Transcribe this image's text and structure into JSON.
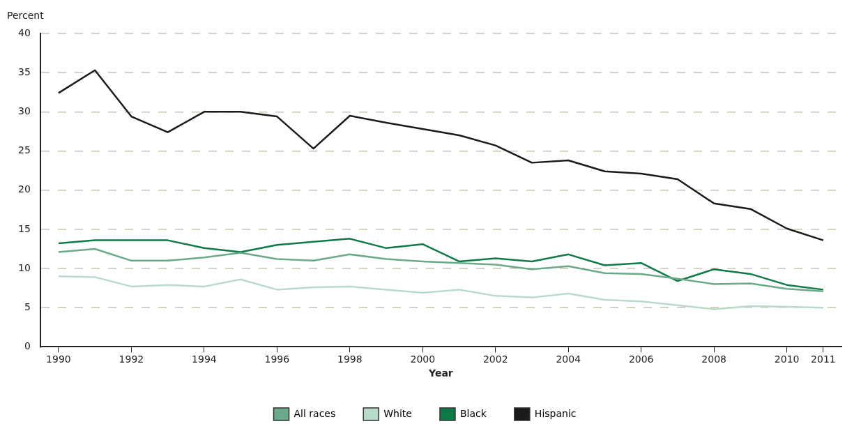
{
  "chart_data": {
    "type": "line",
    "xlabel": "Year",
    "ylabel": "Percent",
    "x": [
      1990,
      1991,
      1992,
      1993,
      1994,
      1995,
      1996,
      1997,
      1998,
      1999,
      2000,
      2001,
      2002,
      2003,
      2004,
      2005,
      2006,
      2007,
      2008,
      2009,
      2010,
      2011
    ],
    "xlim": [
      1989.5,
      2011.5
    ],
    "xticks": [
      1990,
      1992,
      1994,
      1996,
      1998,
      2000,
      2002,
      2004,
      2006,
      2008,
      2010,
      2011
    ],
    "ylim": [
      0,
      40
    ],
    "yticks": [
      0,
      5,
      10,
      15,
      20,
      25,
      30,
      35,
      40
    ],
    "grid": "y",
    "legend": "bottom",
    "marker": "none",
    "line_style": "solid",
    "series": [
      {
        "name": "All races",
        "color": "#6aaa8a",
        "values": [
          12.1,
          12.5,
          11.0,
          11.0,
          11.4,
          12.0,
          11.2,
          11.0,
          11.8,
          11.2,
          10.9,
          10.7,
          10.5,
          9.9,
          10.3,
          9.4,
          9.3,
          8.7,
          8.0,
          8.1,
          7.4,
          7.1
        ]
      },
      {
        "name": "White",
        "color": "#b8dac8",
        "values": [
          9.0,
          8.9,
          7.7,
          7.9,
          7.7,
          8.6,
          7.3,
          7.6,
          7.7,
          7.3,
          6.9,
          7.3,
          6.5,
          6.3,
          6.8,
          6.0,
          5.8,
          5.3,
          4.8,
          5.2,
          5.1,
          5.0
        ]
      },
      {
        "name": "Black",
        "color": "#0f7a48",
        "values": [
          13.2,
          13.6,
          13.6,
          13.6,
          12.6,
          12.1,
          13.0,
          13.4,
          13.8,
          12.6,
          13.1,
          10.9,
          11.3,
          10.9,
          11.8,
          10.4,
          10.7,
          8.4,
          9.9,
          9.3,
          7.9,
          7.3
        ]
      },
      {
        "name": "Hispanic",
        "color": "#1a1a1a",
        "values": [
          32.4,
          35.3,
          29.4,
          27.4,
          30.0,
          30.0,
          29.4,
          25.3,
          29.5,
          28.6,
          27.8,
          27.0,
          25.7,
          23.5,
          23.8,
          22.4,
          22.1,
          21.4,
          18.3,
          17.6,
          15.1,
          13.6
        ]
      }
    ]
  }
}
